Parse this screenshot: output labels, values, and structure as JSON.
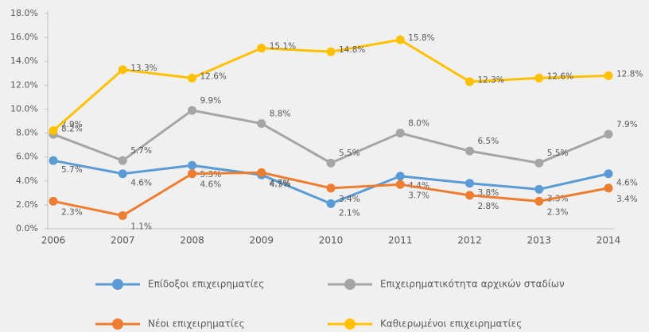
{
  "chart_data": {
    "type": "line",
    "categories": [
      "2006",
      "2007",
      "2008",
      "2009",
      "2010",
      "2011",
      "2012",
      "2013",
      "2014"
    ],
    "ylim": [
      0,
      18
    ],
    "yticks": [
      {
        "value": 0,
        "label": "0.0%"
      },
      {
        "value": 2,
        "label": "2.0%"
      },
      {
        "value": 4,
        "label": "4.0%"
      },
      {
        "value": 6,
        "label": "6.0%"
      },
      {
        "value": 8,
        "label": "8.0%"
      },
      {
        "value": 10,
        "label": "10.0%"
      },
      {
        "value": 12,
        "label": "12.0%"
      },
      {
        "value": 14,
        "label": "14.0%"
      },
      {
        "value": 16,
        "label": "16.0%"
      },
      {
        "value": 18,
        "label": "18.0%"
      }
    ],
    "series": [
      {
        "name": "Επίδοξοι επιχειρηματίες",
        "color": "#5b9bd5",
        "values": [
          5.7,
          4.6,
          5.3,
          4.5,
          2.1,
          4.4,
          3.8,
          3.3,
          4.6
        ],
        "value_labels": [
          "5.7%",
          "4.6%",
          "5.3%",
          "4.5%",
          "2.1%",
          "4.4%",
          "3.8%",
          "3.3%",
          "4.6%"
        ]
      },
      {
        "name": "Επιχειρηματικότητα αρχικών σταδίων",
        "color": "#a5a5a5",
        "values": [
          7.9,
          5.7,
          9.9,
          8.8,
          5.5,
          8.0,
          6.5,
          5.5,
          7.9
        ],
        "value_labels": [
          "7.9%",
          "5.7%",
          "9.9%",
          "8.8%",
          "5.5%",
          "8.0%",
          "6.5%",
          "5.5%",
          "7.9%"
        ]
      },
      {
        "name": "Νέοι επιχειρηματίες",
        "color": "#ed7d31",
        "values": [
          2.3,
          1.1,
          4.6,
          4.7,
          3.4,
          3.7,
          2.8,
          2.3,
          3.4
        ],
        "value_labels": [
          "2.3%",
          "1.1%",
          "4.6%",
          "4.7%",
          "3.4%",
          "3.7%",
          "2.8%",
          "2.3%",
          "3.4%"
        ]
      },
      {
        "name": "Καθιερωμένοι επιχειρηματίες",
        "color": "#ffc000",
        "values": [
          8.2,
          13.3,
          12.6,
          15.1,
          14.8,
          15.8,
          12.3,
          12.6,
          12.8
        ],
        "value_labels": [
          "8.2%",
          "13.3%",
          "12.6%",
          "15.1%",
          "14.8%",
          "15.8%",
          "12.3%",
          "12.6%",
          "12.8%"
        ]
      }
    ]
  }
}
